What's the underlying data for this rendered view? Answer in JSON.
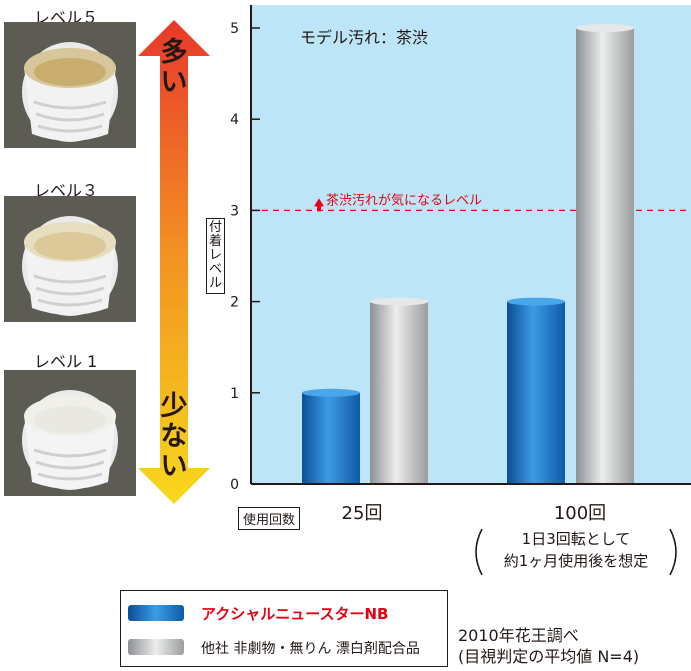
{
  "levels": {
    "top": "レベル５",
    "mid": "レベル３",
    "bottom": "レベル 1"
  },
  "arrow": {
    "top_label": "多い",
    "bottom_label": "少ない"
  },
  "chart_data": {
    "type": "bar",
    "title": "モデル汚れ：茶渋",
    "ylabel": "付着レベル",
    "xlabel": "使用回数",
    "ylim": [
      0,
      5.2
    ],
    "yticks": [
      "0",
      "1",
      "2",
      "3",
      "4",
      "5"
    ],
    "categories": [
      "25回",
      "100回"
    ],
    "category_note": [
      "1日3回転として",
      "約1ヶ月使用後を想定"
    ],
    "series": [
      {
        "name": "アクシャルニュースターNB",
        "values": [
          1.0,
          2.0
        ],
        "color": "#1f6fb8"
      },
      {
        "name": "他社 非劇物・無りん 漂白剤配合品",
        "values": [
          2.0,
          5.0
        ],
        "color": "#b4b6b8"
      }
    ],
    "threshold": {
      "value": 3,
      "label": "茶渋汚れが気になるレベル",
      "color": "#e60012"
    },
    "grid": false,
    "legend_position": "bottom"
  },
  "credit": {
    "line1": "2010年花王調べ",
    "line2": "(目視判定の平均値 N=4)"
  }
}
